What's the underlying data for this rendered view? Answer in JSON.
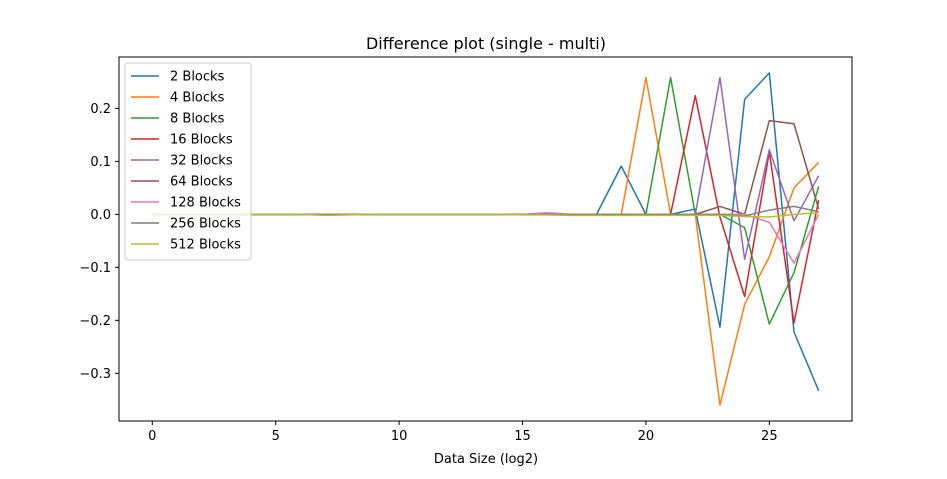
{
  "chart_data": {
    "type": "line",
    "title": "Difference plot (single - multi)",
    "xlabel": "Data Size (log2)",
    "ylabel": "",
    "xlim": [
      -1.35,
      28.35
    ],
    "ylim": [
      -0.39,
      0.297
    ],
    "xticks": [
      0,
      5,
      10,
      15,
      20,
      25
    ],
    "yticks": [
      -0.3,
      -0.2,
      -0.1,
      0.0,
      0.1,
      0.2
    ],
    "ytick_labels": [
      "−0.3",
      "−0.2",
      "−0.1",
      "0.0",
      "0.1",
      "0.2"
    ],
    "grid": false,
    "legend_position": "top-left",
    "x": [
      0,
      1,
      2,
      3,
      4,
      5,
      6,
      7,
      8,
      9,
      10,
      11,
      12,
      13,
      14,
      15,
      16,
      17,
      18,
      19,
      20,
      21,
      22,
      23,
      24,
      25,
      26,
      27
    ],
    "series": [
      {
        "name": "2 Blocks",
        "color": "#1f77b4",
        "values": [
          0,
          0,
          0,
          0,
          0,
          0,
          0,
          -0.001,
          0,
          0,
          0,
          0,
          0,
          0,
          0,
          0,
          0,
          0,
          0,
          0.091,
          0,
          0,
          0.01,
          -0.213,
          0.217,
          0.267,
          -0.222,
          -0.333
        ]
      },
      {
        "name": "4 Blocks",
        "color": "#ff7f0e",
        "values": [
          0,
          0,
          0,
          0,
          0,
          0,
          0,
          0,
          0,
          0,
          0,
          0,
          0,
          0,
          0,
          0,
          0,
          0,
          0,
          0,
          0.258,
          0,
          0,
          -0.36,
          -0.17,
          -0.08,
          0.05,
          0.098
        ]
      },
      {
        "name": "8 Blocks",
        "color": "#2ca02c",
        "values": [
          0,
          0,
          0,
          0,
          0,
          0,
          0,
          0,
          0,
          0,
          0,
          0,
          0,
          0,
          0,
          0,
          0,
          0,
          0,
          0,
          0,
          0.258,
          0,
          0,
          -0.025,
          -0.207,
          -0.11,
          0.053
        ]
      },
      {
        "name": "16 Blocks",
        "color": "#d62728",
        "values": [
          0,
          0,
          0,
          0,
          0,
          0,
          0,
          0,
          0,
          0,
          0,
          0,
          0,
          0,
          0,
          0,
          0,
          0,
          0,
          0,
          0,
          0,
          0.224,
          -0.005,
          -0.155,
          0.118,
          -0.205,
          0.027
        ]
      },
      {
        "name": "32 Blocks",
        "color": "#9467bd",
        "values": [
          0,
          0,
          0,
          0,
          0,
          0,
          0,
          0,
          0,
          0,
          0,
          0,
          0,
          0,
          0,
          0,
          0,
          0,
          0,
          0,
          0,
          0,
          0,
          0.258,
          -0.085,
          0.122,
          -0.012,
          0.073
        ]
      },
      {
        "name": "64 Blocks",
        "color": "#8c564b",
        "values": [
          0,
          0,
          0,
          0,
          0,
          0,
          0,
          0,
          0,
          0,
          0,
          0,
          0,
          0,
          0,
          0,
          0,
          0,
          0,
          0,
          0,
          0,
          0,
          0.015,
          0,
          0.177,
          0.171,
          0.01
        ]
      },
      {
        "name": "128 Blocks",
        "color": "#e377c2",
        "values": [
          0,
          0,
          0,
          0,
          0,
          0,
          0,
          0,
          0,
          0,
          0,
          0,
          0,
          0,
          0,
          0,
          0.003,
          0,
          0,
          0,
          0,
          0,
          0,
          0,
          0,
          -0.015,
          -0.092,
          0
        ]
      },
      {
        "name": "256 Blocks",
        "color": "#7f7f7f",
        "values": [
          0,
          0,
          0,
          0,
          0,
          0,
          0,
          0,
          0,
          0,
          0,
          0,
          0,
          0,
          0,
          0,
          0,
          0,
          0,
          0,
          0,
          0,
          0,
          0,
          -0.003,
          0.008,
          0.015,
          0.005
        ]
      },
      {
        "name": "512 Blocks",
        "color": "#bcbd22",
        "values": [
          0,
          0,
          0,
          0,
          0,
          0,
          0,
          -0.002,
          -0.001,
          0,
          0,
          0,
          0,
          0,
          0,
          -0.001,
          -0.001,
          -0.002,
          -0.002,
          -0.002,
          -0.002,
          -0.002,
          -0.002,
          -0.002,
          -0.004,
          -0.005,
          0,
          0.003
        ]
      }
    ]
  }
}
